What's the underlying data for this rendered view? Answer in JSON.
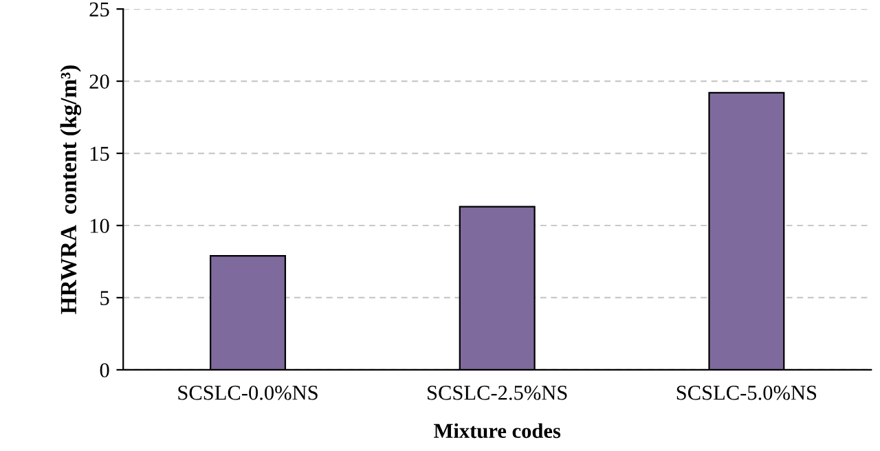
{
  "chart_data": {
    "type": "bar",
    "xlabel": "Mixture codes",
    "ylabel": "HRWRA  content (kg/m³)",
    "categories": [
      "SCSLC-0.0%NS",
      "SCSLC-2.5%NS",
      "SCSLC-5.0%NS"
    ],
    "values": [
      7.9,
      11.3,
      19.2
    ],
    "color": "#7e6a9c",
    "ylim": [
      0,
      25
    ],
    "yticks": [
      0,
      5,
      10,
      15,
      20,
      25
    ],
    "grid": "y"
  }
}
